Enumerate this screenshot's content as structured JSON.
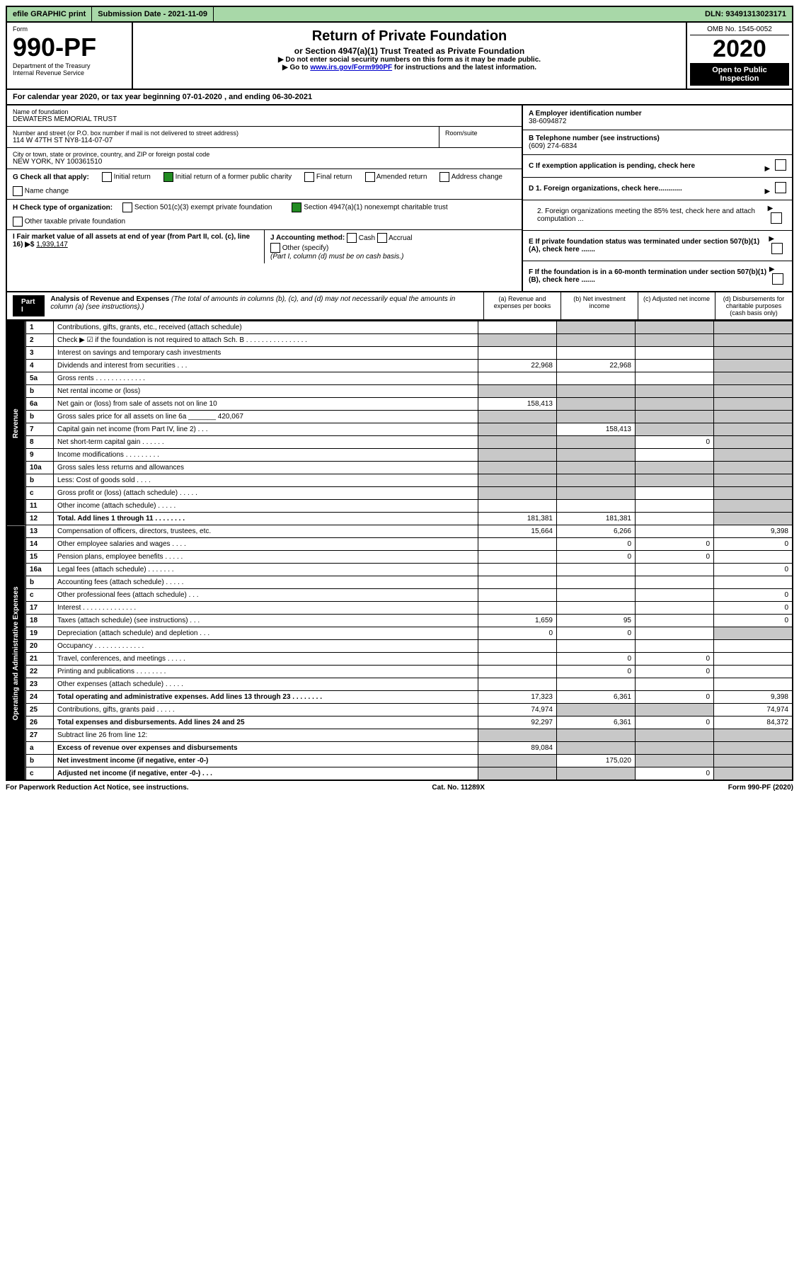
{
  "top": {
    "efile": "efile GRAPHIC print",
    "submission": "Submission Date - 2021-11-09",
    "dln": "DLN: 93491313023171"
  },
  "header": {
    "form_label": "Form",
    "form_number": "990-PF",
    "dept": "Department of the Treasury",
    "irs": "Internal Revenue Service",
    "title": "Return of Private Foundation",
    "subtitle": "or Section 4947(a)(1) Trust Treated as Private Foundation",
    "instr1": "▶ Do not enter social security numbers on this form as it may be made public.",
    "instr2": "▶ Go to www.irs.gov/Form990PF for instructions and the latest information.",
    "omb": "OMB No. 1545-0052",
    "year": "2020",
    "open": "Open to Public Inspection"
  },
  "calyear": "For calendar year 2020, or tax year beginning 07-01-2020              , and ending 06-30-2021",
  "foundation": {
    "name_label": "Name of foundation",
    "name": "DEWATERS MEMORIAL TRUST",
    "addr_label": "Number and street (or P.O. box number if mail is not delivered to street address)",
    "addr": "114 W 47TH ST NY8-114-07-07",
    "room_label": "Room/suite",
    "city_label": "City or town, state or province, country, and ZIP or foreign postal code",
    "city": "NEW YORK, NY  100361510",
    "ein_label": "A Employer identification number",
    "ein": "38-6094872",
    "tel_label": "B Telephone number (see instructions)",
    "tel": "(609) 274-6834",
    "c_label": "C If exemption application is pending, check here",
    "d1": "D 1. Foreign organizations, check here............",
    "d2": "2. Foreign organizations meeting the 85% test, check here and attach computation ...",
    "e": "E If private foundation status was terminated under section 507(b)(1)(A), check here .......",
    "f": "F If the foundation is in a 60-month termination under section 507(b)(1)(B), check here .......",
    "g_label": "G Check all that apply:",
    "g_opts": [
      "Initial return",
      "Initial return of a former public charity",
      "Final return",
      "Amended return",
      "Address change",
      "Name change"
    ],
    "h_label": "H Check type of organization:",
    "h_opts": [
      "Section 501(c)(3) exempt private foundation",
      "Section 4947(a)(1) nonexempt charitable trust",
      "Other taxable private foundation"
    ],
    "i_label": "I Fair market value of all assets at end of year (from Part II, col. (c), line 16) ▶$",
    "i_val": "1,939,147",
    "j_label": "J Accounting method:",
    "j_opts": [
      "Cash",
      "Accrual",
      "Other (specify)"
    ],
    "j_note": "(Part I, column (d) must be on cash basis.)"
  },
  "part1": {
    "label": "Part I",
    "title": "Analysis of Revenue and Expenses",
    "note": "(The total of amounts in columns (b), (c), and (d) may not necessarily equal the amounts in column (a) (see instructions).)",
    "cols": {
      "a": "(a) Revenue and expenses per books",
      "b": "(b) Net investment income",
      "c": "(c) Adjusted net income",
      "d": "(d) Disbursements for charitable purposes (cash basis only)"
    }
  },
  "sections": {
    "revenue": "Revenue",
    "opex": "Operating and Administrative Expenses"
  },
  "lines": [
    {
      "n": "1",
      "d": "Contributions, gifts, grants, etc., received (attach schedule)",
      "a": "",
      "b": "grey",
      "c": "grey",
      "dd": "grey"
    },
    {
      "n": "2",
      "d": "Check ▶ ☑ if the foundation is not required to attach Sch. B   . . . . . . . . . . . . . . . .",
      "a": "grey",
      "b": "grey",
      "c": "grey",
      "dd": "grey"
    },
    {
      "n": "3",
      "d": "Interest on savings and temporary cash investments",
      "a": "",
      "b": "",
      "c": "",
      "dd": "grey"
    },
    {
      "n": "4",
      "d": "Dividends and interest from securities   . . .",
      "a": "22,968",
      "b": "22,968",
      "c": "",
      "dd": "grey"
    },
    {
      "n": "5a",
      "d": "Gross rents   . . . . . . . . . . . . .",
      "a": "",
      "b": "",
      "c": "",
      "dd": "grey"
    },
    {
      "n": "b",
      "d": "Net rental income or (loss)",
      "a": "grey",
      "b": "grey",
      "c": "grey",
      "dd": "grey"
    },
    {
      "n": "6a",
      "d": "Net gain or (loss) from sale of assets not on line 10",
      "a": "158,413",
      "b": "grey",
      "c": "grey",
      "dd": "grey"
    },
    {
      "n": "b",
      "d": "Gross sales price for all assets on line 6a _______ 420,067",
      "a": "grey",
      "b": "grey",
      "c": "grey",
      "dd": "grey"
    },
    {
      "n": "7",
      "d": "Capital gain net income (from Part IV, line 2)   . . .",
      "a": "grey",
      "b": "158,413",
      "c": "grey",
      "dd": "grey"
    },
    {
      "n": "8",
      "d": "Net short-term capital gain   . . . . . .",
      "a": "grey",
      "b": "grey",
      "c": "0",
      "dd": "grey"
    },
    {
      "n": "9",
      "d": "Income modifications . . . . . . . . .",
      "a": "grey",
      "b": "grey",
      "c": "",
      "dd": "grey"
    },
    {
      "n": "10a",
      "d": "Gross sales less returns and allowances",
      "a": "grey",
      "b": "grey",
      "c": "grey",
      "dd": "grey"
    },
    {
      "n": "b",
      "d": "Less: Cost of goods sold   . . . .",
      "a": "grey",
      "b": "grey",
      "c": "grey",
      "dd": "grey"
    },
    {
      "n": "c",
      "d": "Gross profit or (loss) (attach schedule)   . . . . .",
      "a": "grey",
      "b": "grey",
      "c": "",
      "dd": "grey"
    },
    {
      "n": "11",
      "d": "Other income (attach schedule)   . . . . .",
      "a": "",
      "b": "",
      "c": "",
      "dd": "grey"
    },
    {
      "n": "12",
      "d": "Total. Add lines 1 through 11   . . . . . . . .",
      "a": "181,381",
      "b": "181,381",
      "c": "",
      "dd": "grey",
      "bold": true
    },
    {
      "n": "13",
      "d": "Compensation of officers, directors, trustees, etc.",
      "a": "15,664",
      "b": "6,266",
      "c": "",
      "dd": "9,398"
    },
    {
      "n": "14",
      "d": "Other employee salaries and wages   . . . .",
      "a": "",
      "b": "0",
      "c": "0",
      "dd": "0"
    },
    {
      "n": "15",
      "d": "Pension plans, employee benefits . . . . .",
      "a": "",
      "b": "0",
      "c": "0",
      "dd": ""
    },
    {
      "n": "16a",
      "d": "Legal fees (attach schedule) . . . . . . .",
      "a": "",
      "b": "",
      "c": "",
      "dd": "0"
    },
    {
      "n": "b",
      "d": "Accounting fees (attach schedule) . . . . .",
      "a": "",
      "b": "",
      "c": "",
      "dd": ""
    },
    {
      "n": "c",
      "d": "Other professional fees (attach schedule)   . . .",
      "a": "",
      "b": "",
      "c": "",
      "dd": "0"
    },
    {
      "n": "17",
      "d": "Interest . . . . . . . . . . . . . .",
      "a": "",
      "b": "",
      "c": "",
      "dd": "0"
    },
    {
      "n": "18",
      "d": "Taxes (attach schedule) (see instructions)   . . .",
      "a": "1,659",
      "b": "95",
      "c": "",
      "dd": "0"
    },
    {
      "n": "19",
      "d": "Depreciation (attach schedule) and depletion   . . .",
      "a": "0",
      "b": "0",
      "c": "",
      "dd": "grey"
    },
    {
      "n": "20",
      "d": "Occupancy . . . . . . . . . . . . .",
      "a": "",
      "b": "",
      "c": "",
      "dd": ""
    },
    {
      "n": "21",
      "d": "Travel, conferences, and meetings . . . . .",
      "a": "",
      "b": "0",
      "c": "0",
      "dd": ""
    },
    {
      "n": "22",
      "d": "Printing and publications . . . . . . . .",
      "a": "",
      "b": "0",
      "c": "0",
      "dd": ""
    },
    {
      "n": "23",
      "d": "Other expenses (attach schedule) . . . . .",
      "a": "",
      "b": "",
      "c": "",
      "dd": ""
    },
    {
      "n": "24",
      "d": "Total operating and administrative expenses. Add lines 13 through 23   . . . . . . . .",
      "a": "17,323",
      "b": "6,361",
      "c": "0",
      "dd": "9,398",
      "bold": true
    },
    {
      "n": "25",
      "d": "Contributions, gifts, grants paid   . . . . .",
      "a": "74,974",
      "b": "grey",
      "c": "grey",
      "dd": "74,974"
    },
    {
      "n": "26",
      "d": "Total expenses and disbursements. Add lines 24 and 25",
      "a": "92,297",
      "b": "6,361",
      "c": "0",
      "dd": "84,372",
      "bold": true
    },
    {
      "n": "27",
      "d": "Subtract line 26 from line 12:",
      "a": "grey",
      "b": "grey",
      "c": "grey",
      "dd": "grey"
    },
    {
      "n": "a",
      "d": "Excess of revenue over expenses and disbursements",
      "a": "89,084",
      "b": "grey",
      "c": "grey",
      "dd": "grey",
      "bold": true
    },
    {
      "n": "b",
      "d": "Net investment income (if negative, enter -0-)",
      "a": "grey",
      "b": "175,020",
      "c": "grey",
      "dd": "grey",
      "bold": true
    },
    {
      "n": "c",
      "d": "Adjusted net income (if negative, enter -0-)   . . .",
      "a": "grey",
      "b": "grey",
      "c": "0",
      "dd": "grey",
      "bold": true
    }
  ],
  "footer": {
    "left": "For Paperwork Reduction Act Notice, see instructions.",
    "mid": "Cat. No. 11289X",
    "right": "Form 990-PF (2020)"
  },
  "colors": {
    "green_bg": "#a8d8a8",
    "grey_cell": "#c8c8c8",
    "link": "#0000cc"
  }
}
